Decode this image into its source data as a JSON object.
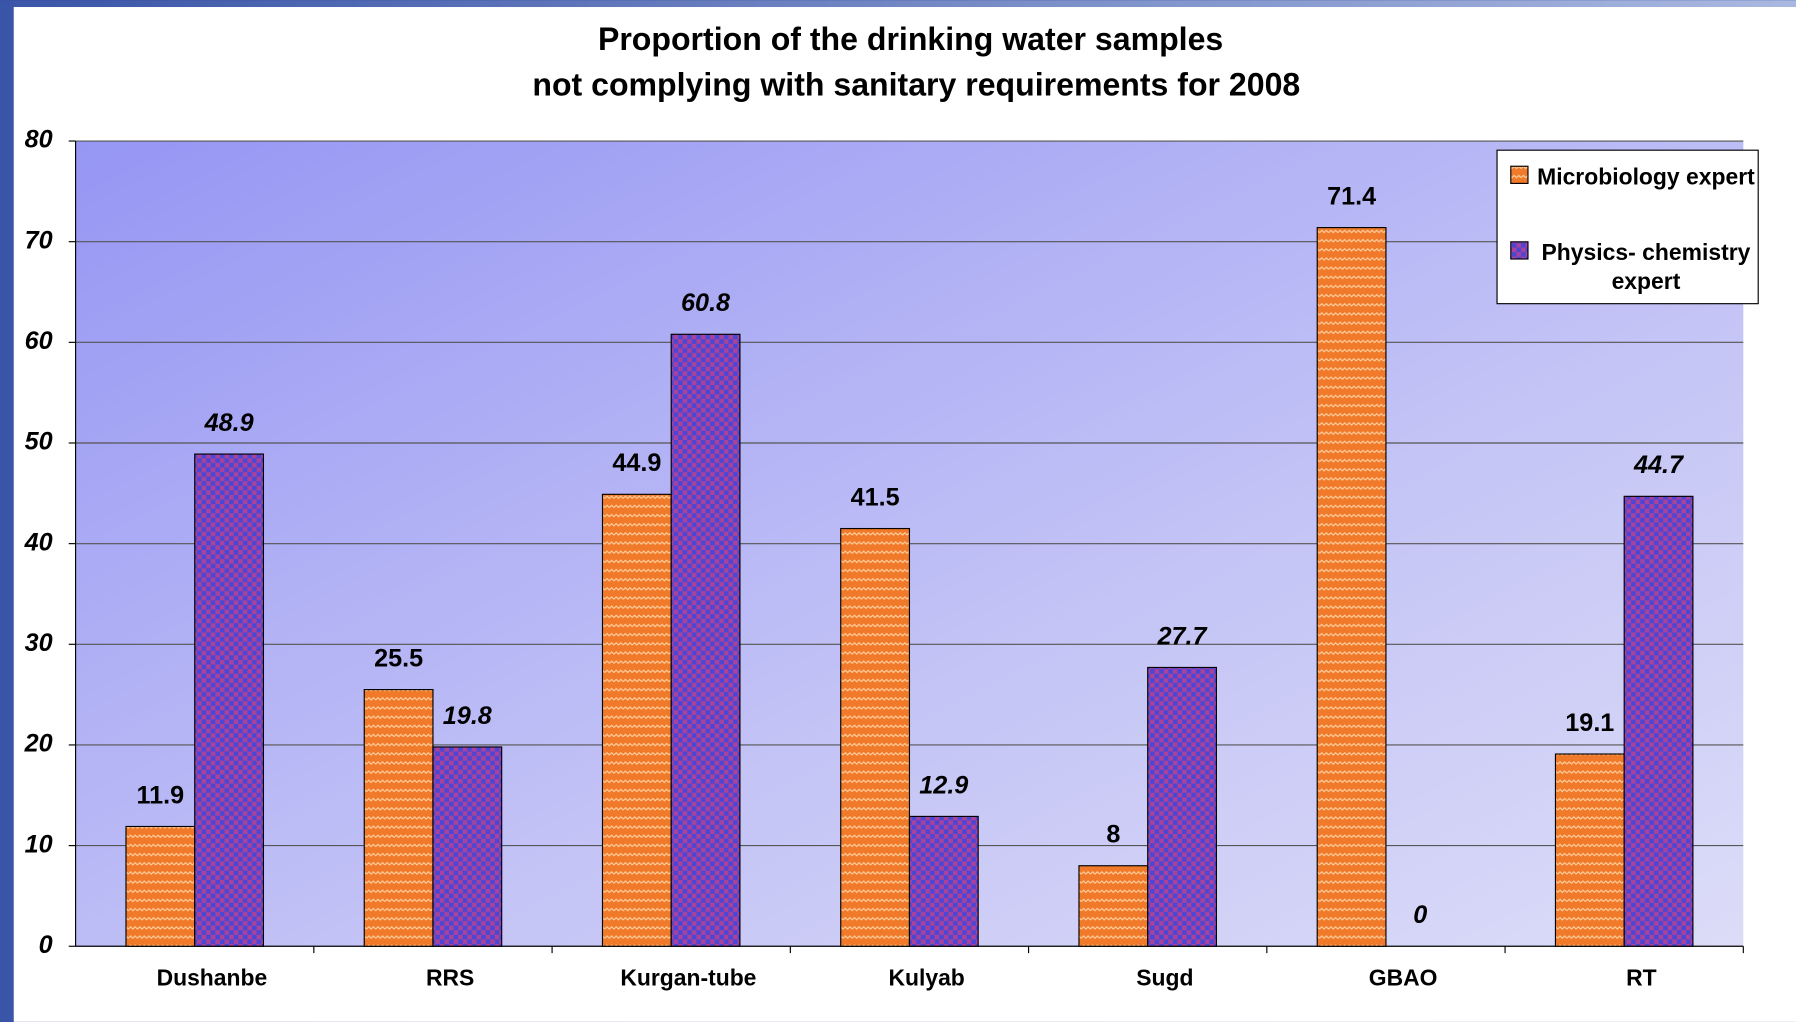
{
  "chart_data": {
    "type": "bar",
    "title": [
      "Proportion of the drinking water samples",
      "not complying with sanitary requirements for  2008"
    ],
    "categories": [
      "Dushanbe",
      "RRS",
      "Kurgan-tube",
      "Kulyab",
      "Sugd",
      "GBAO",
      "RT"
    ],
    "series": [
      {
        "name": "Microbiology expert",
        "color": "#f07a2a",
        "values": [
          11.9,
          25.5,
          44.9,
          41.5,
          8,
          71.4,
          19.1
        ]
      },
      {
        "name": "Physics- chemistry expert",
        "color": "#4a46d6",
        "values": [
          48.9,
          19.8,
          60.8,
          12.9,
          27.7,
          0,
          44.7
        ]
      }
    ],
    "ylim": [
      0,
      80
    ],
    "yticks": [
      0,
      10,
      20,
      30,
      40,
      50,
      60,
      70,
      80
    ],
    "grid": true,
    "legend": "upper right"
  }
}
